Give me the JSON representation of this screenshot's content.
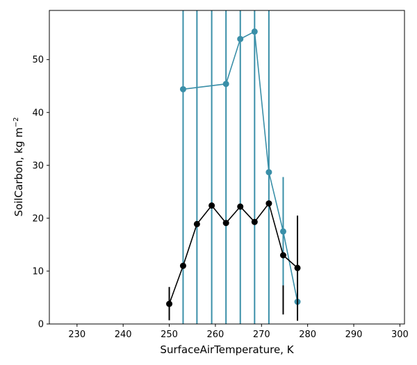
{
  "chart_data": {
    "type": "line",
    "title": "",
    "xlabel": "SurfaceAirTemperature,  K",
    "ylabel_main": "SoilCarbon,  kg m",
    "ylabel_sup": "−2",
    "xlim": [
      224,
      301
    ],
    "ylim": [
      0,
      59.3
    ],
    "xticks": [
      230,
      240,
      250,
      260,
      270,
      280,
      290,
      300
    ],
    "yticks": [
      0,
      10,
      20,
      30,
      40,
      50
    ],
    "grid": false,
    "legend": "none",
    "series": [
      {
        "color": "#000000",
        "points": [
          {
            "x": 250.0,
            "y": 3.8,
            "err_lo": 0.7,
            "err_hi": 7.0
          },
          {
            "x": 253.0,
            "y": 11.0
          },
          {
            "x": 256.0,
            "y": 18.9
          },
          {
            "x": 259.2,
            "y": 22.4
          },
          {
            "x": 262.3,
            "y": 19.1
          },
          {
            "x": 265.4,
            "y": 22.2
          },
          {
            "x": 268.5,
            "y": 19.3
          },
          {
            "x": 271.6,
            "y": 22.8
          },
          {
            "x": 274.7,
            "y": 13.0,
            "err_lo": 1.8,
            "err_hi": 7.3
          },
          {
            "x": 277.8,
            "y": 10.6,
            "err_lo": 0.6,
            "err_hi": 20.5
          }
        ]
      },
      {
        "color": "#3a8fa8",
        "points": [
          {
            "x": 253.0,
            "y": 44.4,
            "err_lo": 0,
            "err_hi": 59.3
          },
          {
            "x": 262.3,
            "y": 45.4,
            "err_lo": 0,
            "err_hi": 59.3
          },
          {
            "x": 265.4,
            "y": 53.9,
            "err_lo": 0,
            "err_hi": 59.3
          },
          {
            "x": 268.5,
            "y": 55.3,
            "err_lo": 0,
            "err_hi": 59.3
          },
          {
            "x": 271.6,
            "y": 28.7,
            "err_lo": 0,
            "err_hi": 59.3
          },
          {
            "x": 274.7,
            "y": 17.5,
            "err_lo": 6.8,
            "err_hi": 27.8
          },
          {
            "x": 277.8,
            "y": 4.2,
            "err_lo": 3.4,
            "err_hi": 5.0
          }
        ],
        "extra_errorbars": [
          {
            "x": 256.0,
            "y_lo": 0,
            "y_hi": 59.3
          },
          {
            "x": 259.2,
            "y_lo": 0,
            "y_hi": 59.3
          }
        ]
      }
    ]
  }
}
